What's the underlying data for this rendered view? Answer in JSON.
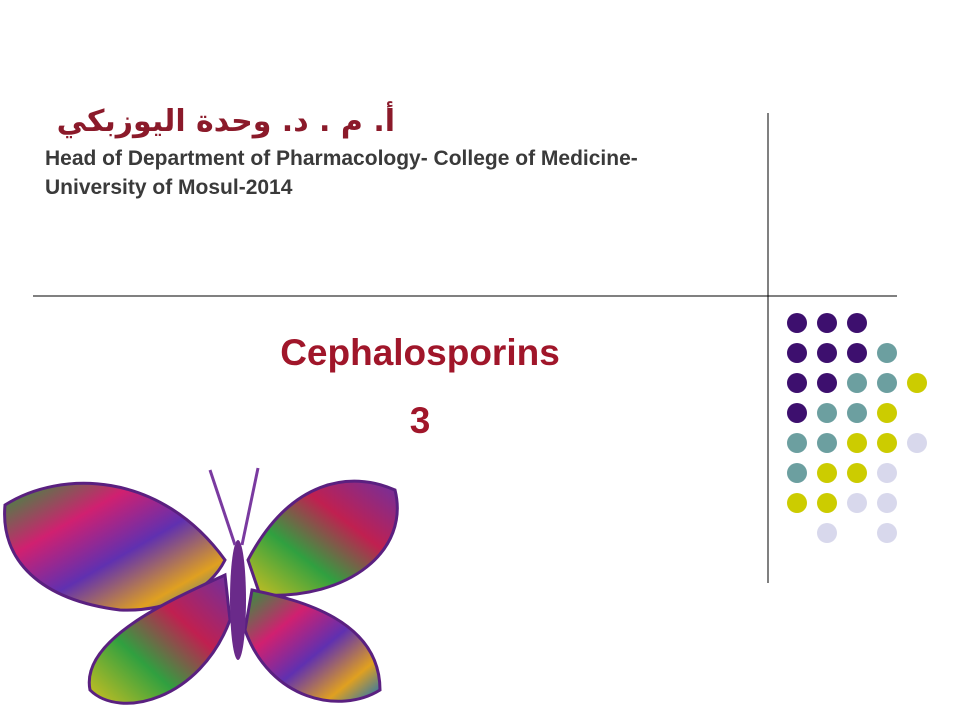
{
  "header": {
    "author": "أ. م . د. وحدة اليوزبكي",
    "affiliation": "Head of Department of Pharmacology- College of Medicine- University of Mosul-2014"
  },
  "slide": {
    "title": "Cephalosporins",
    "number": "3"
  }
}
